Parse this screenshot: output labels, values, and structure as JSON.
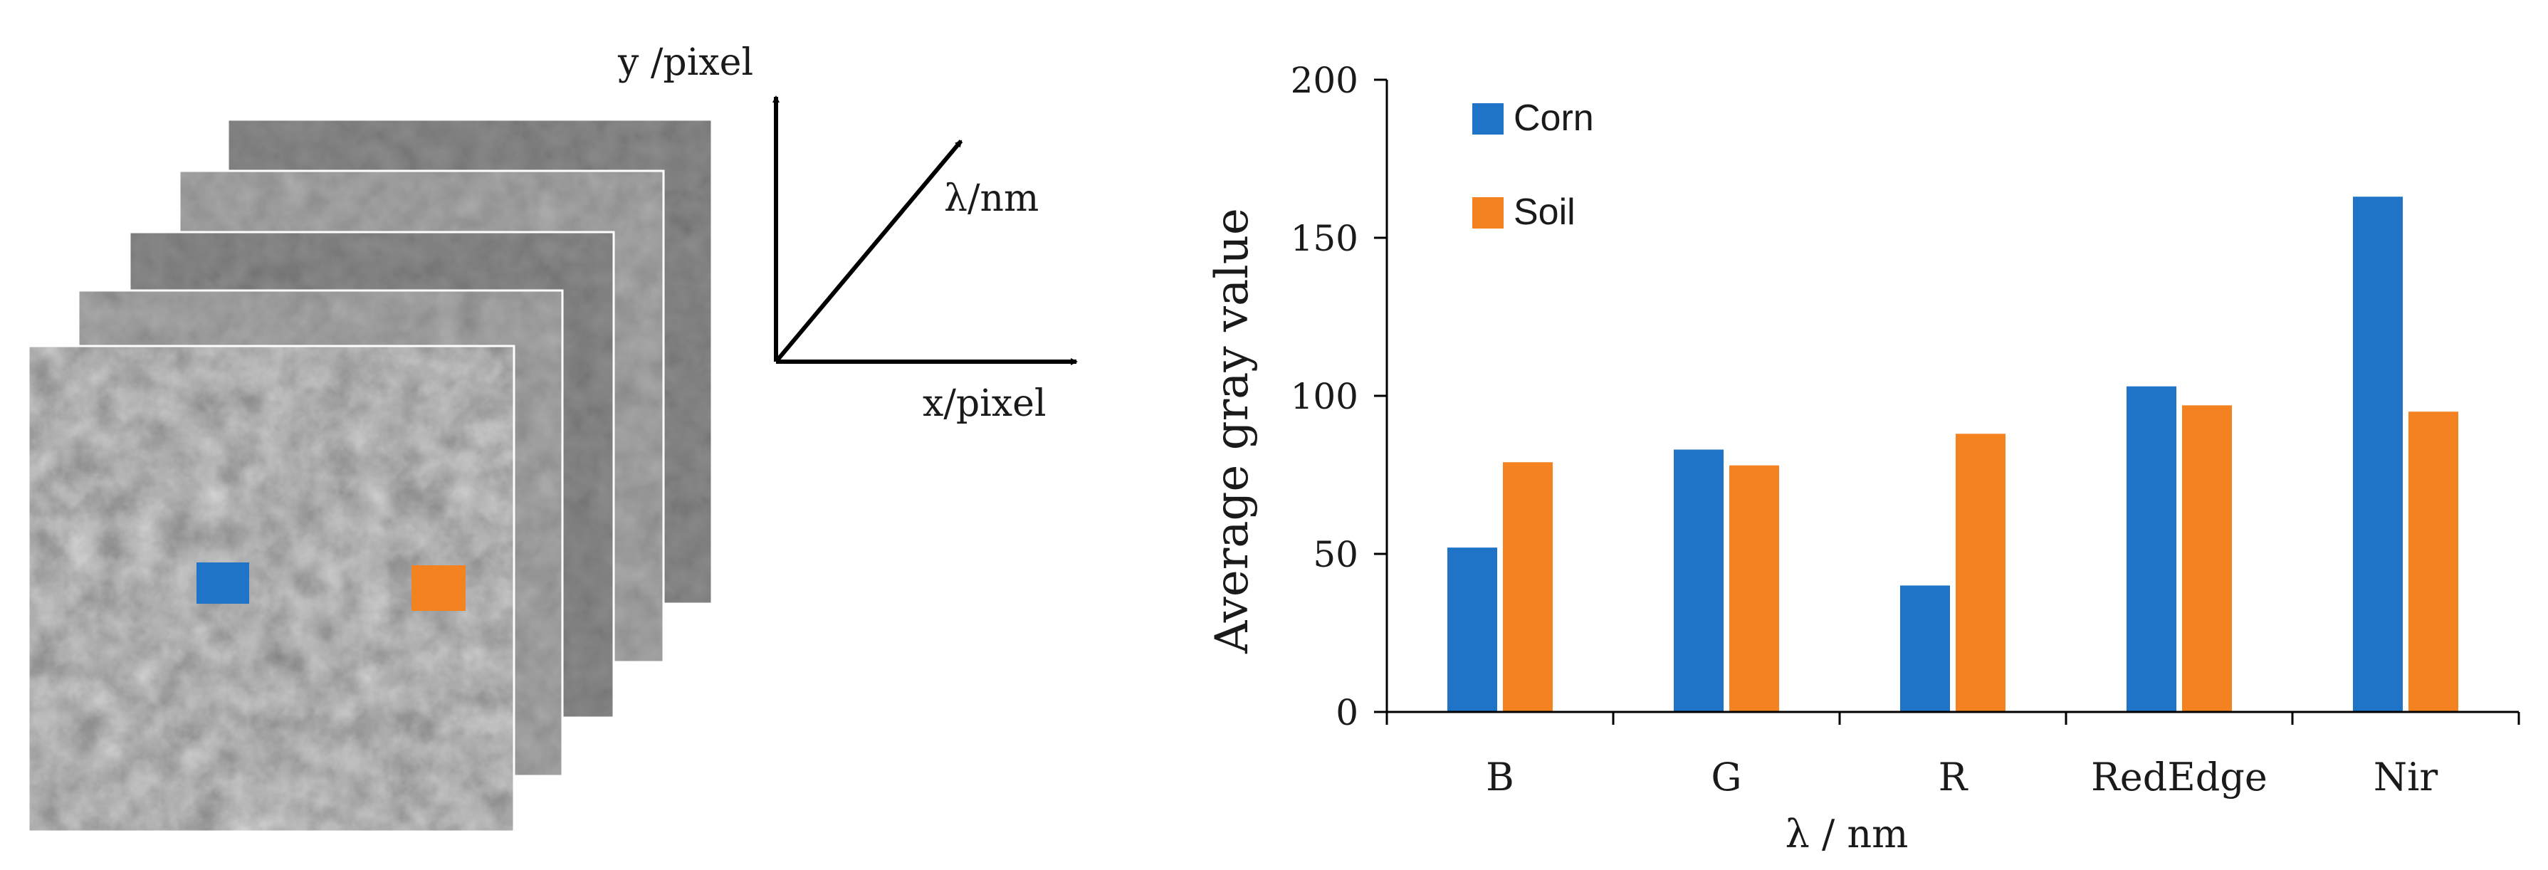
{
  "left_panel": {
    "axis_labels": {
      "y": "y /pixel",
      "lambda": "λ/nm",
      "x": "x/pixel"
    },
    "marker_colors": {
      "corn": "#1f74c8",
      "soil": "#f58220"
    }
  },
  "chart_data": {
    "type": "bar",
    "title": "",
    "xlabel": "λ / nm",
    "ylabel": "Average gray value",
    "categories": [
      "B",
      "G",
      "R",
      "RedEdge",
      "Nir"
    ],
    "series": [
      {
        "name": "Corn",
        "color": "#1f74c8",
        "values": [
          52,
          83,
          40,
          103,
          163
        ]
      },
      {
        "name": "Soil",
        "color": "#f58220",
        "values": [
          79,
          78,
          88,
          97,
          95
        ]
      }
    ],
    "ylim": [
      0,
      200
    ],
    "yticks": [
      0,
      50,
      100,
      150,
      200
    ],
    "ytick_labels": [
      "0",
      "50",
      "100",
      "150",
      "200"
    ],
    "grid": false,
    "legend": "top-left"
  }
}
